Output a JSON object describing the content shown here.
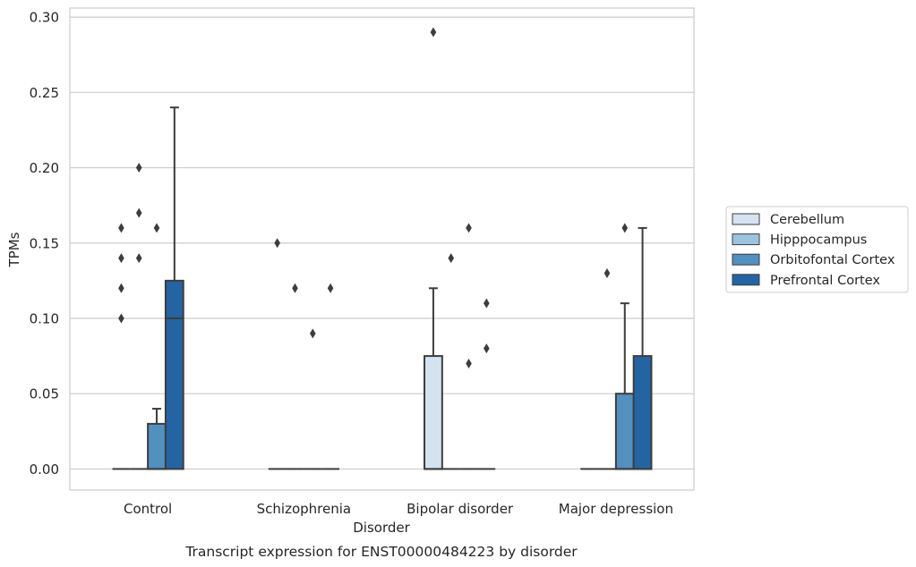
{
  "chart_data": {
    "type": "box",
    "title": "",
    "caption": "Transcript expression for ENST00000484223 by disorder",
    "xlabel": "Disorder",
    "ylabel": "TPMs",
    "ylim": [
      -0.014,
      0.306
    ],
    "yticks": [
      0.0,
      0.05,
      0.1,
      0.15,
      0.2,
      0.25,
      0.3
    ],
    "ytick_labels": [
      "0.00",
      "0.05",
      "0.10",
      "0.15",
      "0.20",
      "0.25",
      "0.30"
    ],
    "grid": "horizontal",
    "legend_position": "right",
    "categories": [
      "Control",
      "Schizophrenia",
      "Bipolar disorder",
      "Major depression"
    ],
    "series": [
      {
        "name": "Cerebellum",
        "color": "#d5e3f1",
        "boxes": [
          {
            "q1": 0,
            "median": 0,
            "q3": 0,
            "whisker_low": 0,
            "whisker_high": 0,
            "outliers": [
              0.1,
              0.12,
              0.14,
              0.16
            ]
          },
          {
            "q1": 0,
            "median": 0,
            "q3": 0,
            "whisker_low": 0,
            "whisker_high": 0,
            "outliers": [
              0.15
            ]
          },
          {
            "q1": 0,
            "median": 0,
            "q3": 0.075,
            "whisker_low": 0,
            "whisker_high": 0.12,
            "outliers": [
              0.29
            ]
          },
          {
            "q1": 0,
            "median": 0,
            "q3": 0,
            "whisker_low": 0,
            "whisker_high": 0,
            "outliers": []
          }
        ]
      },
      {
        "name": "Hipppocampus",
        "color": "#9dc3de",
        "boxes": [
          {
            "q1": 0,
            "median": 0,
            "q3": 0,
            "whisker_low": 0,
            "whisker_high": 0,
            "outliers": [
              0.14,
              0.17,
              0.2
            ]
          },
          {
            "q1": 0,
            "median": 0,
            "q3": 0,
            "whisker_low": 0,
            "whisker_high": 0,
            "outliers": [
              0.12
            ]
          },
          {
            "q1": 0,
            "median": 0,
            "q3": 0,
            "whisker_low": 0,
            "whisker_high": 0,
            "outliers": [
              0.14
            ]
          },
          {
            "q1": 0,
            "median": 0,
            "q3": 0,
            "whisker_low": 0,
            "whisker_high": 0,
            "outliers": [
              0.13
            ]
          }
        ]
      },
      {
        "name": "Orbitofontal Cortex",
        "color": "#5290c0",
        "boxes": [
          {
            "q1": 0,
            "median": 0,
            "q3": 0.03,
            "whisker_low": 0,
            "whisker_high": 0.04,
            "outliers": [
              0.16
            ]
          },
          {
            "q1": 0,
            "median": 0,
            "q3": 0,
            "whisker_low": 0,
            "whisker_high": 0,
            "outliers": [
              0.09
            ]
          },
          {
            "q1": 0,
            "median": 0,
            "q3": 0,
            "whisker_low": 0,
            "whisker_high": 0,
            "outliers": [
              0.07,
              0.16
            ]
          },
          {
            "q1": 0,
            "median": 0,
            "q3": 0.05,
            "whisker_low": 0,
            "whisker_high": 0.11,
            "outliers": [
              0.16
            ]
          }
        ]
      },
      {
        "name": "Prefrontal Cortex",
        "color": "#2464a3",
        "boxes": [
          {
            "q1": 0,
            "median": 0.1,
            "q3": 0.125,
            "whisker_low": 0,
            "whisker_high": 0.24,
            "outliers": []
          },
          {
            "q1": 0,
            "median": 0,
            "q3": 0,
            "whisker_low": 0,
            "whisker_high": 0,
            "outliers": [
              0.12
            ]
          },
          {
            "q1": 0,
            "median": 0,
            "q3": 0,
            "whisker_low": 0,
            "whisker_high": 0,
            "outliers": [
              0.08,
              0.11
            ]
          },
          {
            "q1": 0,
            "median": 0,
            "q3": 0.075,
            "whisker_low": 0,
            "whisker_high": 0.16,
            "outliers": []
          }
        ]
      }
    ]
  }
}
